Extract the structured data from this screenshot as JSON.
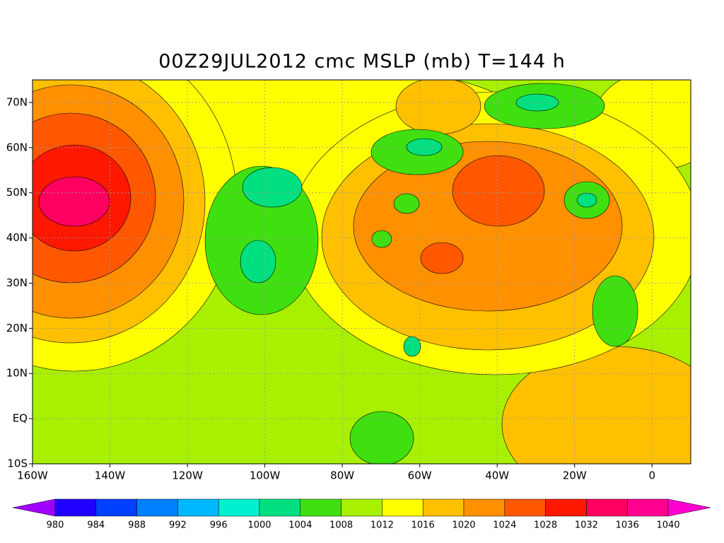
{
  "map": {
    "title": "00Z29JUL2012 cmc MSLP (mb) T=144 h",
    "xlim": [
      -160,
      10
    ],
    "ylim": [
      -10,
      75
    ],
    "xticks": [
      {
        "value": -160,
        "label": "160W"
      },
      {
        "value": -140,
        "label": "140W"
      },
      {
        "value": -120,
        "label": "120W"
      },
      {
        "value": -100,
        "label": "100W"
      },
      {
        "value": -80,
        "label": "80W"
      },
      {
        "value": -60,
        "label": "60W"
      },
      {
        "value": -40,
        "label": "40W"
      },
      {
        "value": -20,
        "label": "20W"
      },
      0
    ],
    "yticks": [
      {
        "value": -10,
        "label": "10S"
      },
      {
        "value": 0,
        "label": "EQ"
      },
      {
        "value": 10,
        "label": "10N"
      },
      {
        "value": 20,
        "label": "20N"
      },
      {
        "value": 30,
        "label": "30N"
      },
      {
        "value": 40,
        "label": "40N"
      },
      {
        "value": 50,
        "label": "50N"
      },
      {
        "value": 60,
        "label": "60N"
      },
      {
        "value": 70,
        "label": "70N"
      }
    ],
    "grid": true,
    "colorbar": {
      "levels": [
        980,
        984,
        988,
        992,
        996,
        1000,
        1004,
        1008,
        1012,
        1016,
        1020,
        1024,
        1028,
        1032,
        1036,
        1040
      ],
      "colors": [
        "#a000ff",
        "#2000ff",
        "#0040ff",
        "#0080ff",
        "#00b8ff",
        "#00f0d0",
        "#00e080",
        "#40e010",
        "#a8f000",
        "#ffff00",
        "#ffc000",
        "#ff9000",
        "#ff5800",
        "#ff1800",
        "#ff0060",
        "#ff0090",
        "#ff00d0"
      ]
    }
  }
}
